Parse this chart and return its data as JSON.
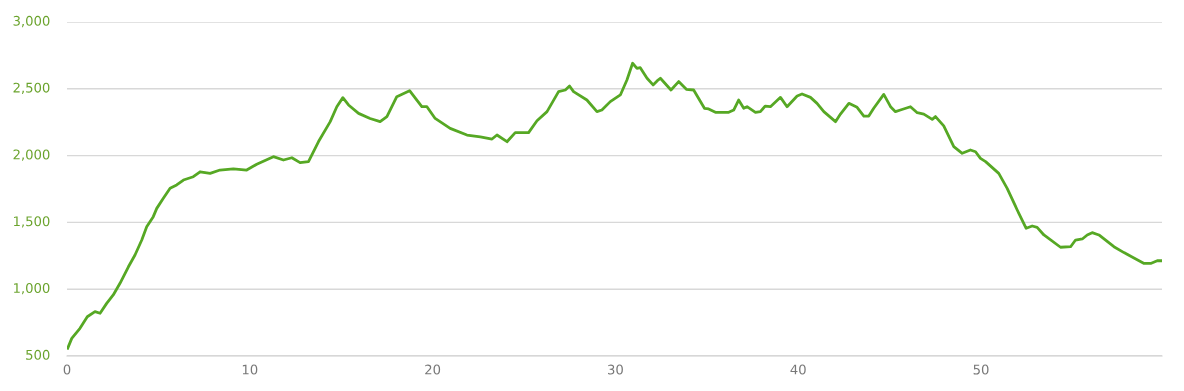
{
  "chart_data": {
    "type": "line",
    "x": [
      0.04,
      0.26,
      0.71,
      1.11,
      1.53,
      1.81,
      2.17,
      2.53,
      2.9,
      3.36,
      3.72,
      4.09,
      4.36,
      4.72,
      4.91,
      5.27,
      5.64,
      6.0,
      6.37,
      6.91,
      7.28,
      7.83,
      8.37,
      9.1,
      9.83,
      10.38,
      11.29,
      11.84,
      12.3,
      12.75,
      13.21,
      13.76,
      14.4,
      14.76,
      15.09,
      15.4,
      15.95,
      16.58,
      17.13,
      17.5,
      18.04,
      18.74,
      19.41,
      19.69,
      20.14,
      20.96,
      21.88,
      22.61,
      23.25,
      23.52,
      24.07,
      24.52,
      25.25,
      25.71,
      26.26,
      26.89,
      27.26,
      27.49,
      27.71,
      28.44,
      28.99,
      29.26,
      29.72,
      30.27,
      30.63,
      30.94,
      31.18,
      31.36,
      31.73,
      32.06,
      32.28,
      32.46,
      33.04,
      33.46,
      33.88,
      34.28,
      34.87,
      35.1,
      35.47,
      36.2,
      36.47,
      36.74,
      37.02,
      37.2,
      37.66,
      37.93,
      38.19,
      38.48,
      39.03,
      39.39,
      39.94,
      40.21,
      40.67,
      41.03,
      41.4,
      42.04,
      42.31,
      42.77,
      43.22,
      43.59,
      43.86,
      44.13,
      44.68,
      45.05,
      45.32,
      45.59,
      46.14,
      46.51,
      46.87,
      47.33,
      47.51,
      47.96,
      48.51,
      48.97,
      49.42,
      49.7,
      49.97,
      50.25,
      50.97,
      51.43,
      51.98,
      52.47,
      52.8,
      53.07,
      53.44,
      54.35,
      54.9,
      55.17,
      55.54,
      55.81,
      56.08,
      56.45,
      57.27,
      57.82,
      58.92,
      59.28,
      59.64,
      59.9
    ],
    "series": [
      {
        "color": "#56a824",
        "values": [
          558,
          632,
          707,
          794,
          832,
          820,
          894,
          957,
          1044,
          1168,
          1256,
          1368,
          1468,
          1543,
          1605,
          1680,
          1755,
          1780,
          1817,
          1842,
          1879,
          1867,
          1892,
          1900,
          1892,
          1935,
          1992,
          1967,
          1984,
          1947,
          1955,
          2105,
          2254,
          2366,
          2434,
          2379,
          2316,
          2278,
          2254,
          2292,
          2441,
          2486,
          2366,
          2366,
          2278,
          2204,
          2154,
          2141,
          2124,
          2154,
          2104,
          2172,
          2172,
          2261,
          2329,
          2479,
          2491,
          2521,
          2479,
          2416,
          2329,
          2341,
          2404,
          2454,
          2566,
          2691,
          2653,
          2658,
          2579,
          2529,
          2559,
          2579,
          2491,
          2554,
          2496,
          2491,
          2354,
          2349,
          2324,
          2324,
          2341,
          2416,
          2354,
          2366,
          2324,
          2329,
          2371,
          2366,
          2436,
          2366,
          2446,
          2461,
          2436,
          2391,
          2329,
          2254,
          2311,
          2391,
          2361,
          2296,
          2296,
          2354,
          2458,
          2366,
          2329,
          2341,
          2366,
          2321,
          2311,
          2271,
          2292,
          2222,
          2067,
          2017,
          2042,
          2029,
          1979,
          1955,
          1867,
          1755,
          1593,
          1456,
          1473,
          1463,
          1406,
          1314,
          1318,
          1368,
          1376,
          1406,
          1423,
          1406,
          1318,
          1274,
          1193,
          1193,
          1213,
          1213
        ]
      }
    ],
    "xlim": [
      0,
      59.9
    ],
    "xticks": [
      0,
      10,
      20,
      30,
      40,
      50
    ],
    "ylim": [
      500,
      3000
    ],
    "yticks": [
      500,
      {
        "value": 1000,
        "label": "1,000"
      },
      {
        "value": 1500,
        "label": "1,500"
      },
      {
        "value": 2000,
        "label": "2,000"
      },
      {
        "value": 2500,
        "label": "2,500"
      },
      {
        "value": 3000,
        "label": "3,000"
      }
    ],
    "grid": "y",
    "marker": "none",
    "line_style": "solid"
  }
}
